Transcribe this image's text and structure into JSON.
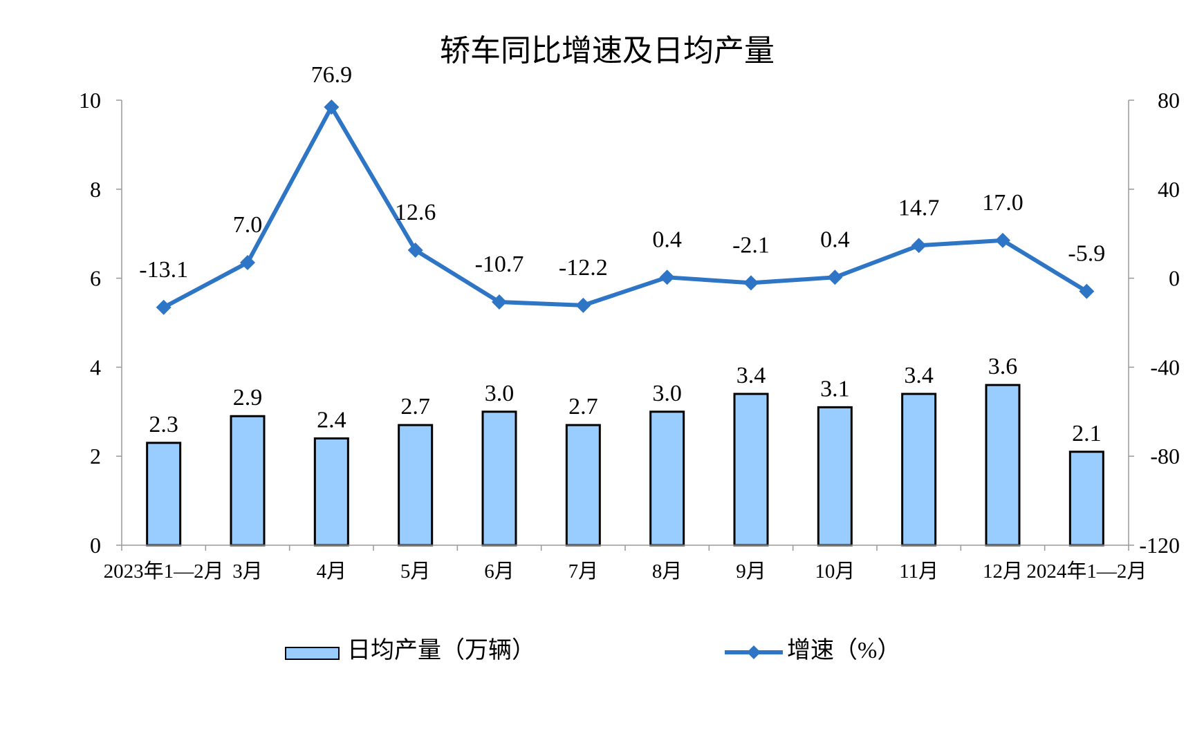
{
  "chart_data": {
    "type": "bar+line",
    "title": "轿车同比增速及日均产量",
    "categories": [
      "2023年1—2月",
      "3月",
      "4月",
      "5月",
      "6月",
      "7月",
      "8月",
      "9月",
      "10月",
      "11月",
      "12月",
      "2024年1—2月"
    ],
    "series": [
      {
        "name": "日均产量（万辆）",
        "type": "bar",
        "axis": "left",
        "values": [
          2.3,
          2.9,
          2.4,
          2.7,
          3.0,
          2.7,
          3.0,
          3.4,
          3.1,
          3.4,
          3.6,
          2.1
        ],
        "labels": [
          "2.3",
          "2.9",
          "2.4",
          "2.7",
          "3.0",
          "2.7",
          "3.0",
          "3.4",
          "3.1",
          "3.4",
          "3.6",
          "2.1"
        ],
        "color": "#99CCFF"
      },
      {
        "name": "增速（%）",
        "type": "line",
        "axis": "right",
        "values": [
          -13.1,
          7.0,
          76.9,
          12.6,
          -10.7,
          -12.2,
          0.4,
          -2.1,
          0.4,
          14.7,
          17.0,
          -5.9
        ],
        "labels": [
          "-13.1",
          "7.0",
          "76.9",
          "12.6",
          "-10.7",
          "-12.2",
          "0.4",
          "-2.1",
          "0.4",
          "14.7",
          "17.0",
          "-5.9"
        ],
        "color": "#2E75C5"
      }
    ],
    "y_left": {
      "ylim": [
        0,
        10
      ],
      "ticks": [
        "0",
        "2",
        "4",
        "6",
        "8",
        "10"
      ]
    },
    "y_right": {
      "ylim": [
        -120,
        80
      ],
      "ticks": [
        "-120",
        "-80",
        "-40",
        "0",
        "40",
        "80"
      ]
    },
    "grid": false,
    "legend_position": "bottom"
  }
}
